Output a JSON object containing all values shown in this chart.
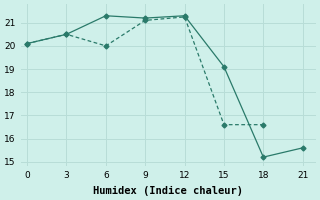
{
  "xlabel": "Humidex (Indice chaleur)",
  "line1_x": [
    0,
    3,
    6,
    9,
    12,
    15,
    18,
    21
  ],
  "line1_y": [
    20.1,
    20.5,
    21.3,
    21.2,
    21.3,
    19.1,
    15.2,
    15.6
  ],
  "line2_x": [
    0,
    3,
    6,
    9,
    12,
    15,
    18
  ],
  "line2_y": [
    20.1,
    20.5,
    20.0,
    21.1,
    21.25,
    16.6,
    16.6
  ],
  "line_color": "#2a7a6a",
  "marker": "D",
  "marker_size": 2.5,
  "background_color": "#cff0ea",
  "grid_color": "#b8ddd7",
  "xlim": [
    -0.5,
    22
  ],
  "ylim": [
    14.8,
    21.8
  ],
  "xticks": [
    0,
    3,
    6,
    9,
    12,
    15,
    18,
    21
  ],
  "yticks": [
    15,
    16,
    17,
    18,
    19,
    20,
    21
  ],
  "tick_fontsize": 6.5,
  "label_fontsize": 7.5
}
